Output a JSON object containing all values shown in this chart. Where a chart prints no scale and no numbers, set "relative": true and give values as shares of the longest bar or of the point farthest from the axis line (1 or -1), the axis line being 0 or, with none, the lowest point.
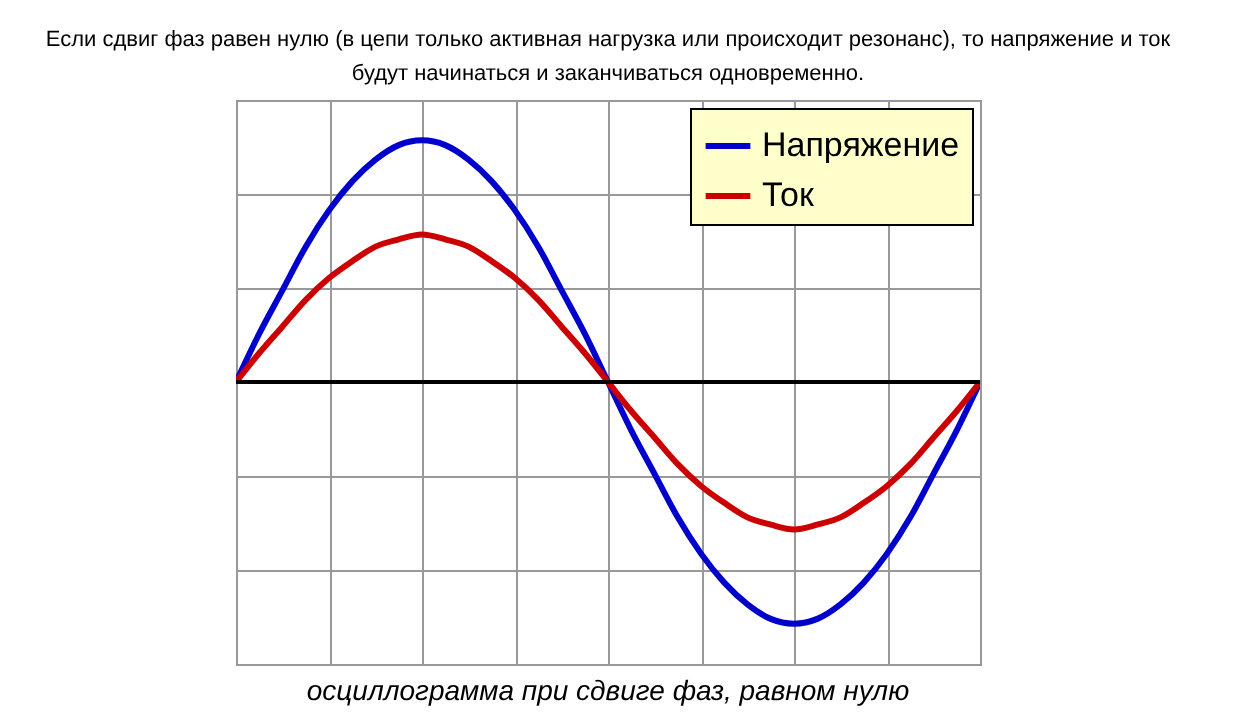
{
  "chart_data": {
    "type": "line",
    "relative": true,
    "title": "Если сдвиг фаз равен нулю (в цепи только активная  нагрузка или происходит резонанс), то напряжение и ток\nбудут начинаться и заканчиваться одновременно.",
    "annotations": [
      "осциллограмма при сдвиге фаз, равном нулю"
    ],
    "categories": [
      null,
      null,
      null,
      null,
      null,
      null,
      null,
      null,
      null,
      null,
      null,
      null,
      null,
      null,
      null,
      null,
      null,
      null,
      null,
      null,
      null,
      null,
      null,
      null,
      null,
      null,
      null,
      null,
      null,
      null,
      null,
      null,
      null
    ],
    "series": [
      {
        "name": "Напряжение",
        "color": "#0000cc",
        "values": [
          0,
          0.2,
          0.38,
          0.56,
          0.71,
          0.83,
          0.92,
          0.98,
          1,
          0.98,
          0.92,
          0.83,
          0.71,
          0.56,
          0.38,
          0.2,
          0,
          -0.2,
          -0.38,
          -0.56,
          -0.71,
          -0.83,
          -0.92,
          -0.98,
          -1,
          -0.98,
          -0.92,
          -0.83,
          -0.71,
          -0.56,
          -0.38,
          -0.2,
          0
        ]
      },
      {
        "name": "Ток",
        "color": "#cc0000",
        "values": [
          0,
          0.12,
          0.23,
          0.34,
          0.43,
          0.5,
          0.56,
          0.59,
          0.61,
          0.59,
          0.56,
          0.5,
          0.43,
          0.34,
          0.23,
          0.12,
          0,
          -0.12,
          -0.23,
          -0.34,
          -0.43,
          -0.5,
          -0.56,
          -0.59,
          -0.61,
          -0.59,
          -0.56,
          -0.5,
          -0.43,
          -0.34,
          -0.23,
          -0.12,
          0
        ]
      }
    ],
    "grid": true,
    "legend": "top right",
    "marker": "none",
    "line_style": "solid"
  }
}
